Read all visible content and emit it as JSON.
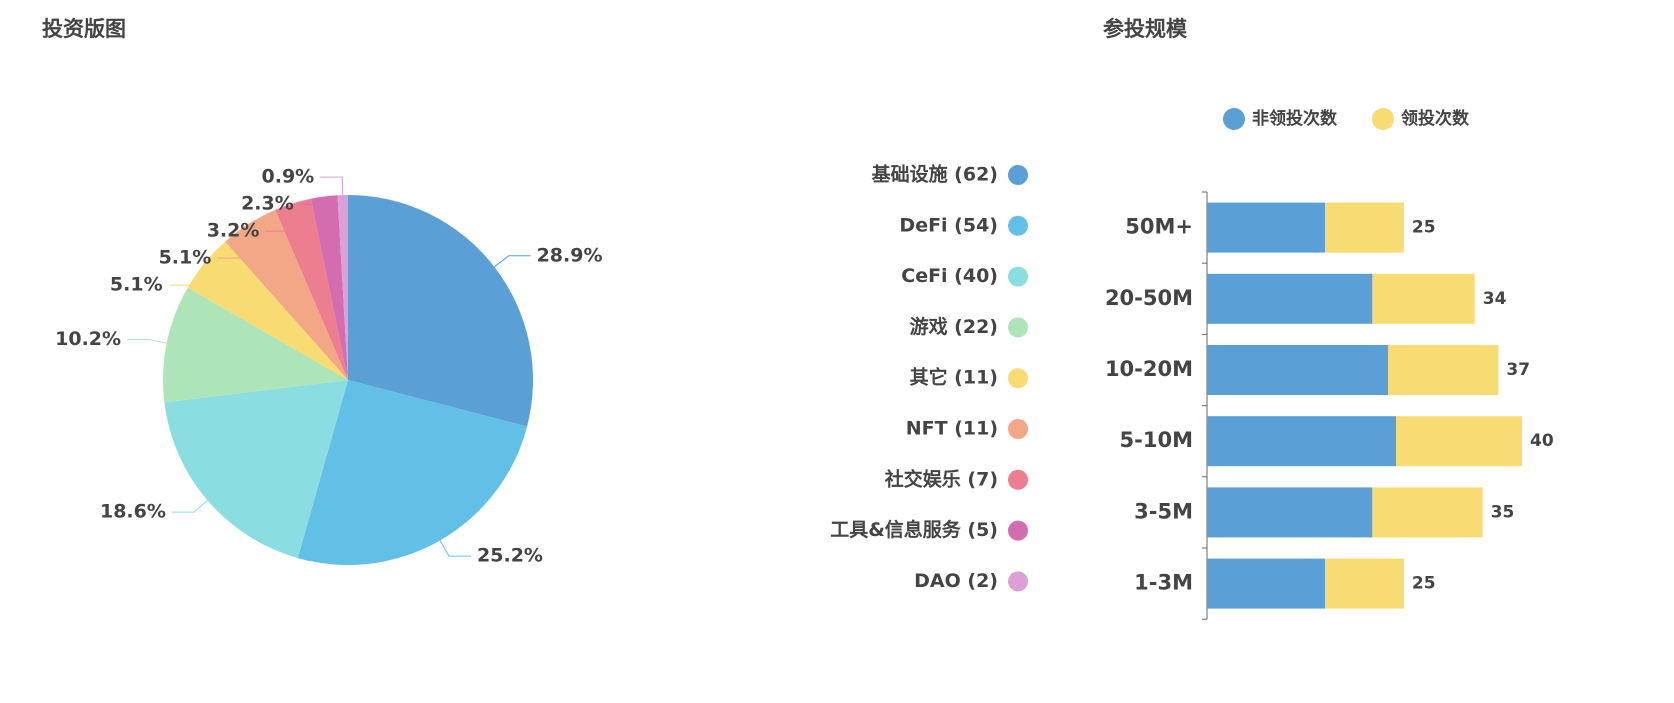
{
  "chart_data": [
    {
      "type": "pie",
      "title": "投资版图",
      "categories": [
        "基础设施 (62)",
        "DeFi (54)",
        "CeFi (40)",
        "游戏 (22)",
        "其它 (11)",
        "NFT (11)",
        "社交娱乐 (7)",
        "工具&信息服务 (5)",
        "DAO (2)"
      ],
      "values": [
        28.9,
        25.2,
        18.6,
        10.2,
        5.1,
        5.1,
        3.2,
        2.3,
        0.9
      ],
      "value_labels": [
        "28.9%",
        "25.2%",
        "18.6%",
        "10.2%",
        "5.1%",
        "5.1%",
        "3.2%",
        "2.3%",
        "0.9%"
      ],
      "colors": [
        "#5aa0d6",
        "#62c0e6",
        "#8adde0",
        "#ade5b8",
        "#f8db72",
        "#f2a887",
        "#ec7e8f",
        "#d46db0",
        "#dc9fd8"
      ]
    },
    {
      "type": "bar",
      "title": "参投规模",
      "orientation": "horizontal",
      "stacked": true,
      "categories": [
        "50M+",
        "20-50M",
        "10-20M",
        "5-10M",
        "3-5M",
        "1-3M"
      ],
      "series": [
        {
          "name": "非领投次数",
          "color": "#5aa0d6",
          "values": [
            15,
            21,
            23,
            24,
            21,
            15
          ]
        },
        {
          "name": "领投次数",
          "color": "#f8db72",
          "values": [
            10,
            13,
            14,
            16,
            14,
            10
          ]
        }
      ],
      "totals": [
        25,
        34,
        37,
        40,
        35,
        25
      ],
      "xlim": [
        0,
        40
      ]
    }
  ]
}
